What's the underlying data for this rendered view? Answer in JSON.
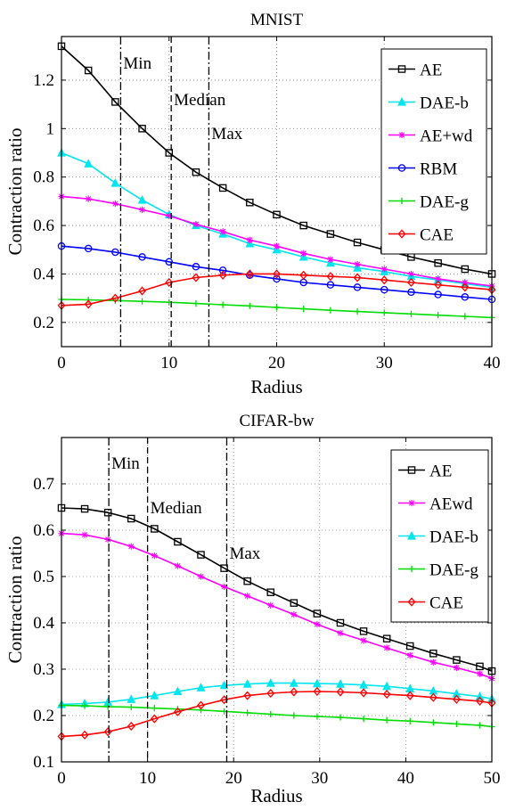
{
  "chart_data": [
    {
      "type": "line",
      "title": "MNIST",
      "xlabel": "Radius",
      "ylabel": "Contraction ratio",
      "xlim": [
        0,
        40
      ],
      "ylim": [
        0.1,
        1.38
      ],
      "xticks": [
        0,
        10,
        20,
        30,
        40
      ],
      "yticks": [
        0.2,
        0.4,
        0.6,
        0.8,
        1,
        1.2
      ],
      "xtick_labels": [
        "0",
        "10",
        "20",
        "30",
        "40"
      ],
      "ytick_labels": [
        "0.2",
        "0.4",
        "0.6",
        "0.8",
        "1",
        "1.2"
      ],
      "grid": true,
      "legend_position": "top-right",
      "vlines": [
        {
          "label": "Min",
          "x": 5.5,
          "style": "dashdot"
        },
        {
          "label": "Median",
          "x": 10.2,
          "style": "dashed"
        },
        {
          "label": "Max",
          "x": 13.7,
          "style": "dashdot"
        }
      ],
      "series": [
        {
          "name": "AE",
          "color": "#000000",
          "marker": "square",
          "x": [
            0,
            2.5,
            5,
            7.5,
            10,
            12.5,
            15,
            17.5,
            20,
            22.5,
            25,
            27.5,
            30,
            32.5,
            35,
            37.5,
            40
          ],
          "y": [
            1.34,
            1.24,
            1.11,
            1.0,
            0.9,
            0.82,
            0.755,
            0.695,
            0.645,
            0.6,
            0.565,
            0.53,
            0.5,
            0.47,
            0.445,
            0.42,
            0.4
          ]
        },
        {
          "name": "DAE-b",
          "color": "#00e5ee",
          "marker": "triangle",
          "x": [
            0,
            2.5,
            5,
            7.5,
            10,
            12.5,
            15,
            17.5,
            20,
            22.5,
            25,
            27.5,
            30,
            32.5,
            35,
            37.5,
            40
          ],
          "y": [
            0.9,
            0.855,
            0.775,
            0.705,
            0.645,
            0.6,
            0.565,
            0.525,
            0.5,
            0.47,
            0.445,
            0.425,
            0.41,
            0.39,
            0.375,
            0.36,
            0.345
          ]
        },
        {
          "name": "AE+wd",
          "color": "#ff00ff",
          "marker": "star",
          "x": [
            0,
            2.5,
            5,
            7.5,
            10,
            12.5,
            15,
            17.5,
            20,
            22.5,
            25,
            27.5,
            30,
            32.5,
            35,
            37.5,
            40
          ],
          "y": [
            0.72,
            0.71,
            0.69,
            0.665,
            0.64,
            0.605,
            0.575,
            0.54,
            0.515,
            0.485,
            0.46,
            0.44,
            0.42,
            0.4,
            0.38,
            0.365,
            0.35
          ]
        },
        {
          "name": "RBM",
          "color": "#0000ff",
          "marker": "circle",
          "x": [
            0,
            2.5,
            5,
            7.5,
            10,
            12.5,
            15,
            17.5,
            20,
            22.5,
            25,
            27.5,
            30,
            32.5,
            35,
            37.5,
            40
          ],
          "y": [
            0.515,
            0.505,
            0.49,
            0.47,
            0.45,
            0.43,
            0.415,
            0.395,
            0.38,
            0.365,
            0.355,
            0.345,
            0.335,
            0.325,
            0.315,
            0.305,
            0.295
          ]
        },
        {
          "name": "DAE-g",
          "color": "#00dd00",
          "marker": "plus",
          "x": [
            0,
            2.5,
            5,
            7.5,
            10,
            12.5,
            15,
            17.5,
            20,
            22.5,
            25,
            27.5,
            30,
            32.5,
            35,
            37.5,
            40
          ],
          "y": [
            0.295,
            0.293,
            0.29,
            0.287,
            0.283,
            0.278,
            0.273,
            0.268,
            0.262,
            0.256,
            0.25,
            0.245,
            0.24,
            0.235,
            0.23,
            0.225,
            0.22
          ]
        },
        {
          "name": "CAE",
          "color": "#ff0000",
          "marker": "diamond",
          "x": [
            0,
            2.5,
            5,
            7.5,
            10,
            12.5,
            15,
            17.5,
            20,
            22.5,
            25,
            27.5,
            30,
            32.5,
            35,
            37.5,
            40
          ],
          "y": [
            0.27,
            0.275,
            0.3,
            0.33,
            0.365,
            0.385,
            0.395,
            0.4,
            0.4,
            0.395,
            0.39,
            0.385,
            0.375,
            0.365,
            0.355,
            0.345,
            0.335
          ]
        }
      ]
    },
    {
      "type": "line",
      "title": "CIFAR-bw",
      "xlabel": "Radius",
      "ylabel": "Contraction ratio",
      "xlim": [
        0,
        50
      ],
      "ylim": [
        0.1,
        0.8
      ],
      "xticks": [
        0,
        10,
        20,
        30,
        40,
        50
      ],
      "yticks": [
        0.1,
        0.2,
        0.3,
        0.4,
        0.5,
        0.6,
        0.7
      ],
      "xtick_labels": [
        "0",
        "10",
        "20",
        "30",
        "40",
        "50"
      ],
      "ytick_labels": [
        "0.1",
        "0.2",
        "0.3",
        "0.4",
        "0.5",
        "0.6",
        "0.7"
      ],
      "grid": true,
      "legend_position": "top-right",
      "vlines": [
        {
          "label": "Min",
          "x": 5.5,
          "style": "dashdot"
        },
        {
          "label": "Median",
          "x": 10,
          "style": "dashed"
        },
        {
          "label": "Max",
          "x": 19.2,
          "style": "dashdot"
        }
      ],
      "series": [
        {
          "name": "AE",
          "color": "#000000",
          "marker": "square",
          "x": [
            0,
            2.7,
            5.4,
            8.1,
            10.8,
            13.5,
            16.2,
            18.9,
            21.6,
            24.3,
            27,
            29.7,
            32.4,
            35.1,
            37.8,
            40.5,
            43.2,
            45.9,
            48.6,
            50
          ],
          "y": [
            0.648,
            0.646,
            0.638,
            0.625,
            0.603,
            0.575,
            0.547,
            0.518,
            0.49,
            0.466,
            0.443,
            0.42,
            0.4,
            0.382,
            0.366,
            0.35,
            0.334,
            0.32,
            0.306,
            0.296
          ]
        },
        {
          "name": "AEwd",
          "color": "#ff00ff",
          "marker": "star",
          "x": [
            0,
            2.7,
            5.4,
            8.1,
            10.8,
            13.5,
            16.2,
            18.9,
            21.6,
            24.3,
            27,
            29.7,
            32.4,
            35.1,
            37.8,
            40.5,
            43.2,
            45.9,
            48.6,
            50
          ],
          "y": [
            0.593,
            0.59,
            0.58,
            0.565,
            0.545,
            0.523,
            0.5,
            0.478,
            0.458,
            0.438,
            0.418,
            0.397,
            0.378,
            0.362,
            0.346,
            0.33,
            0.315,
            0.303,
            0.29,
            0.28
          ]
        },
        {
          "name": "DAE-b",
          "color": "#00e5ee",
          "marker": "triangle",
          "x": [
            0,
            2.7,
            5.4,
            8.1,
            10.8,
            13.5,
            16.2,
            18.9,
            21.6,
            24.3,
            27,
            29.7,
            32.4,
            35.1,
            37.8,
            40.5,
            43.2,
            45.9,
            48.6,
            50
          ],
          "y": [
            0.224,
            0.226,
            0.229,
            0.235,
            0.243,
            0.252,
            0.26,
            0.265,
            0.268,
            0.27,
            0.27,
            0.269,
            0.268,
            0.266,
            0.263,
            0.258,
            0.253,
            0.247,
            0.241,
            0.236
          ]
        },
        {
          "name": "DAE-g",
          "color": "#00dd00",
          "marker": "plus",
          "x": [
            0,
            2.7,
            5.4,
            8.1,
            10.8,
            13.5,
            16.2,
            18.9,
            21.6,
            24.3,
            27,
            29.7,
            32.4,
            35.1,
            37.8,
            40.5,
            43.2,
            45.9,
            48.6,
            50
          ],
          "y": [
            0.222,
            0.221,
            0.219,
            0.218,
            0.216,
            0.214,
            0.212,
            0.209,
            0.206,
            0.203,
            0.2,
            0.198,
            0.196,
            0.193,
            0.19,
            0.188,
            0.185,
            0.182,
            0.179,
            0.176
          ]
        },
        {
          "name": "CAE",
          "color": "#ff0000",
          "marker": "diamond",
          "x": [
            0,
            2.7,
            5.4,
            8.1,
            10.8,
            13.5,
            16.2,
            18.9,
            21.6,
            24.3,
            27,
            29.7,
            32.4,
            35.1,
            37.8,
            40.5,
            43.2,
            45.9,
            48.6,
            50
          ],
          "y": [
            0.155,
            0.158,
            0.165,
            0.177,
            0.193,
            0.208,
            0.222,
            0.234,
            0.243,
            0.248,
            0.251,
            0.252,
            0.251,
            0.249,
            0.246,
            0.243,
            0.239,
            0.235,
            0.231,
            0.227
          ]
        }
      ]
    }
  ]
}
